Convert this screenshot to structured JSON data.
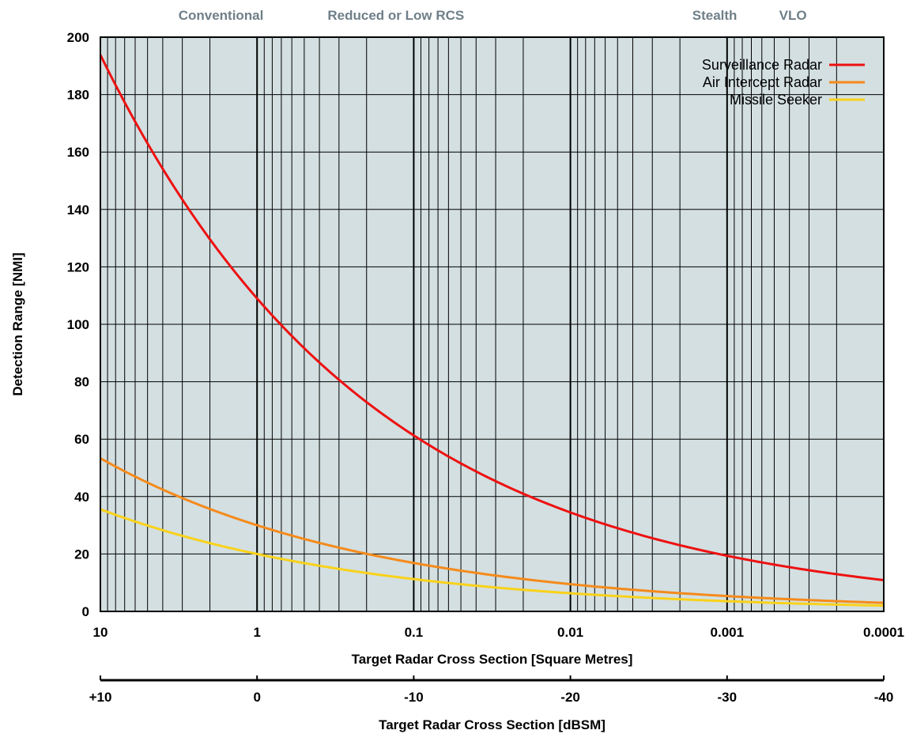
{
  "chart_data": {
    "type": "line",
    "x_scale": "log",
    "x_reversed": true,
    "xlim": [
      10,
      0.0001
    ],
    "ylim": [
      0,
      200
    ],
    "xlabel": "Target Radar Cross Section [Square Metres]",
    "ylabel": "Detection Range [NMI]",
    "x_ticks": [
      10,
      1,
      0.1,
      0.01,
      0.001,
      0.0001
    ],
    "x_tick_labels": [
      "10",
      "1",
      "0.1",
      "0.01",
      "0.001",
      "0.0001"
    ],
    "y_ticks": [
      0,
      20,
      40,
      60,
      80,
      100,
      120,
      140,
      160,
      180,
      200
    ],
    "y_tick_labels": [
      "0",
      "20",
      "40",
      "60",
      "80",
      "100",
      "120",
      "140",
      "160",
      "180",
      "200"
    ],
    "secondary_axis": {
      "label": "Target Radar Cross Section [dBSM]",
      "ticks": [
        10,
        0,
        -10,
        -20,
        -30,
        -40
      ],
      "tick_labels": [
        "+10",
        "0",
        "-10",
        "-20",
        "-30",
        "-40"
      ]
    },
    "band_labels": [
      {
        "text": "Conventional",
        "x": 1.7
      },
      {
        "text": "Reduced or Low RCS",
        "x": 0.13
      },
      {
        "text": "Stealth",
        "x": 0.0012
      },
      {
        "text": "VLO",
        "x": 0.00038
      }
    ],
    "grid": true,
    "legend_position": "top-right",
    "background_color": "#d3dfe1",
    "series": [
      {
        "name": "Surveillance Radar",
        "color": "#ee1111",
        "r_at_1": 109
      },
      {
        "name": "Air Intercept Radar",
        "color": "#f58a1a",
        "r_at_1": 30
      },
      {
        "name": "Missile Seeker",
        "color": "#f9d21a",
        "r_at_1": 20
      }
    ]
  }
}
